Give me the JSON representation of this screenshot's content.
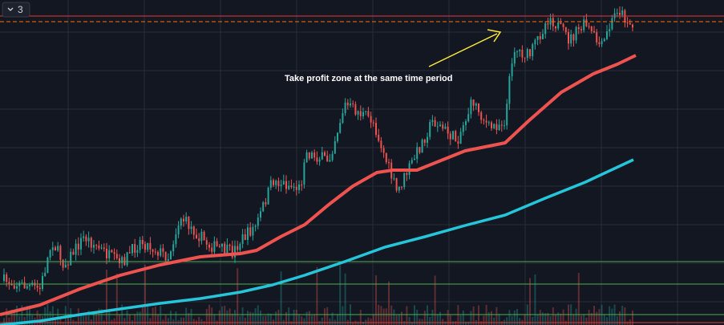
{
  "toolbar": {
    "interval_badge": "3"
  },
  "annotation": "Take profit zone at the same time period"
}
